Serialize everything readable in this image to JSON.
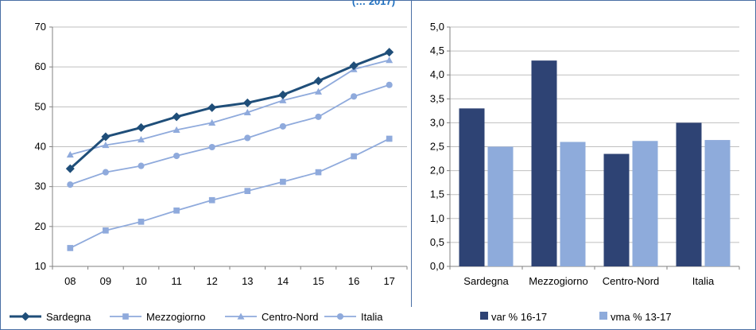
{
  "figure": {
    "title_fragment": "(… 2017)"
  },
  "colors": {
    "sardegna": "#1f4e79",
    "mezzogiorno": "#8faadc",
    "centro_nord": "#8faadc",
    "italia": "#8faadc",
    "var_bar": "#2e4374",
    "vma_bar": "#8eabdb",
    "grid": "#bfbfbf",
    "border": "#4a6fa5"
  },
  "chart_data": [
    {
      "type": "line",
      "x": [
        "08",
        "09",
        "10",
        "11",
        "12",
        "13",
        "14",
        "15",
        "16",
        "17"
      ],
      "ylim": [
        10,
        70
      ],
      "yticks": [
        10,
        20,
        30,
        40,
        50,
        60,
        70
      ],
      "grid": true,
      "legend_position": "bottom",
      "series": [
        {
          "name": "Sardegna",
          "marker": "diamond",
          "values": [
            34.5,
            42.5,
            44.8,
            47.5,
            49.8,
            51.0,
            53.0,
            56.5,
            60.3,
            63.7
          ]
        },
        {
          "name": "Mezzogiorno",
          "marker": "square",
          "values": [
            14.6,
            19.0,
            21.2,
            24.0,
            26.6,
            28.9,
            31.2,
            33.6,
            37.6,
            42.0
          ]
        },
        {
          "name": "Centro-Nord",
          "marker": "triangle",
          "values": [
            38.0,
            40.4,
            41.8,
            44.2,
            46.0,
            48.6,
            51.6,
            53.8,
            59.4,
            61.7
          ]
        },
        {
          "name": "Italia",
          "marker": "circle",
          "values": [
            30.5,
            33.6,
            35.2,
            37.7,
            39.9,
            42.2,
            45.1,
            47.5,
            52.6,
            55.5
          ]
        }
      ]
    },
    {
      "type": "bar",
      "categories": [
        "Sardegna",
        "Mezzogiorno",
        "Centro-Nord",
        "Italia"
      ],
      "ylim": [
        0,
        5
      ],
      "yticks": [
        "0,0",
        "0,5",
        "1,0",
        "1,5",
        "2,0",
        "2,5",
        "3,0",
        "3,5",
        "4,0",
        "4,5",
        "5,0"
      ],
      "grid": true,
      "legend_position": "bottom",
      "series": [
        {
          "name": "var % 16-17",
          "values": [
            3.3,
            4.3,
            2.35,
            3.0
          ]
        },
        {
          "name": "vma % 13-17",
          "values": [
            2.5,
            2.6,
            2.62,
            2.64
          ]
        }
      ]
    }
  ]
}
